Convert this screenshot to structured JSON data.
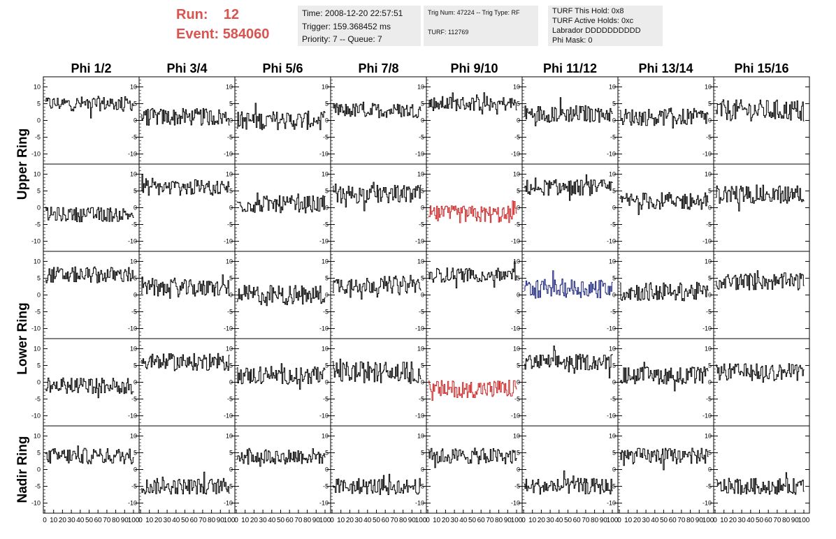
{
  "run": {
    "run_label": "Run:",
    "run_value": "12",
    "event_label": "Event:",
    "event_value": "584060",
    "color": "#d9534f"
  },
  "time_box": {
    "time": "Time: 2008-12-20 22:57:51",
    "trigger": "Trigger: 159.368452 ms",
    "priority": "Priority: 7 -- Queue: 7"
  },
  "trig_box": {
    "trig": "Trig Num: 47224 -- Trig Type: RF",
    "turf": "TURF: 112769"
  },
  "turf_box": {
    "this_hold": "TURF This Hold: 0x8",
    "active_holds": "TURF Active Holds: 0xc",
    "labrador": "Labrador DDDDDDDDDD",
    "phi_mask": "Phi Mask: 0"
  },
  "chart_data": {
    "type": "line",
    "columns": [
      "Phi 1/2",
      "Phi 3/4",
      "Phi 5/6",
      "Phi 7/8",
      "Phi 9/10",
      "Phi 11/12",
      "Phi 13/14",
      "Phi 15/16"
    ],
    "ring_labels": [
      {
        "label": "Upper Ring",
        "rows": [
          0,
          1
        ]
      },
      {
        "label": "Lower Ring",
        "rows": [
          2,
          3
        ]
      },
      {
        "label": "Nadir Ring",
        "rows": [
          4
        ]
      }
    ],
    "ylim": [
      -13,
      13
    ],
    "xlim": [
      0,
      100
    ],
    "y_ticks": [
      -10,
      -5,
      0,
      5,
      10
    ],
    "x_ticks": [
      0,
      10,
      20,
      30,
      40,
      50,
      60,
      70,
      80,
      90,
      100
    ],
    "samples": 96,
    "colors": {
      "normal": "#000000",
      "red": "#cc2222",
      "blue": "#1a237e"
    },
    "panels": [
      [
        {
          "level": 5,
          "spread": 2.2,
          "color": "normal"
        },
        {
          "level": 1,
          "spread": 2.6,
          "color": "normal"
        },
        {
          "level": 0,
          "spread": 2.8,
          "color": "normal"
        },
        {
          "level": 3,
          "spread": 2.2,
          "color": "normal"
        },
        {
          "level": 5,
          "spread": 2.2,
          "color": "normal"
        },
        {
          "level": 2,
          "spread": 2.6,
          "color": "normal"
        },
        {
          "level": 1,
          "spread": 2.6,
          "color": "normal"
        },
        {
          "level": 3,
          "spread": 3.2,
          "color": "normal"
        }
      ],
      [
        {
          "level": -2,
          "spread": 2.2,
          "color": "normal"
        },
        {
          "level": 6,
          "spread": 2.4,
          "color": "normal"
        },
        {
          "level": 1,
          "spread": 2.6,
          "color": "normal"
        },
        {
          "level": 4,
          "spread": 2.8,
          "color": "normal"
        },
        {
          "level": -2,
          "spread": 2.6,
          "color": "red"
        },
        {
          "level": 6,
          "spread": 2.4,
          "color": "normal"
        },
        {
          "level": 2,
          "spread": 2.6,
          "color": "normal"
        },
        {
          "level": 4,
          "spread": 2.8,
          "color": "normal"
        }
      ],
      [
        {
          "level": 6,
          "spread": 2.4,
          "color": "normal"
        },
        {
          "level": 2,
          "spread": 2.6,
          "color": "normal"
        },
        {
          "level": 0,
          "spread": 3.0,
          "color": "normal"
        },
        {
          "level": 3,
          "spread": 2.6,
          "color": "normal"
        },
        {
          "level": 6,
          "spread": 2.2,
          "color": "normal"
        },
        {
          "level": 2,
          "spread": 2.8,
          "color": "blue"
        },
        {
          "level": 1,
          "spread": 2.8,
          "color": "normal"
        },
        {
          "level": 4,
          "spread": 2.6,
          "color": "normal"
        }
      ],
      [
        {
          "level": -1,
          "spread": 2.4,
          "color": "normal"
        },
        {
          "level": 6,
          "spread": 2.6,
          "color": "normal"
        },
        {
          "level": 2,
          "spread": 2.6,
          "color": "normal"
        },
        {
          "level": 3,
          "spread": 3.2,
          "color": "normal"
        },
        {
          "level": -2,
          "spread": 2.6,
          "color": "red"
        },
        {
          "level": 6,
          "spread": 2.4,
          "color": "normal"
        },
        {
          "level": 2,
          "spread": 2.6,
          "color": "normal"
        },
        {
          "level": 3,
          "spread": 2.6,
          "color": "normal"
        }
      ],
      [
        {
          "level": 4,
          "spread": 2.4,
          "color": "normal"
        },
        {
          "level": -5,
          "spread": 2.4,
          "color": "normal"
        },
        {
          "level": 4,
          "spread": 2.4,
          "color": "normal"
        },
        {
          "level": -5,
          "spread": 2.4,
          "color": "normal"
        },
        {
          "level": 4,
          "spread": 2.4,
          "color": "normal"
        },
        {
          "level": -5,
          "spread": 2.4,
          "color": "normal"
        },
        {
          "level": 4,
          "spread": 2.4,
          "color": "normal"
        },
        {
          "level": -5,
          "spread": 2.4,
          "color": "normal"
        }
      ]
    ]
  }
}
